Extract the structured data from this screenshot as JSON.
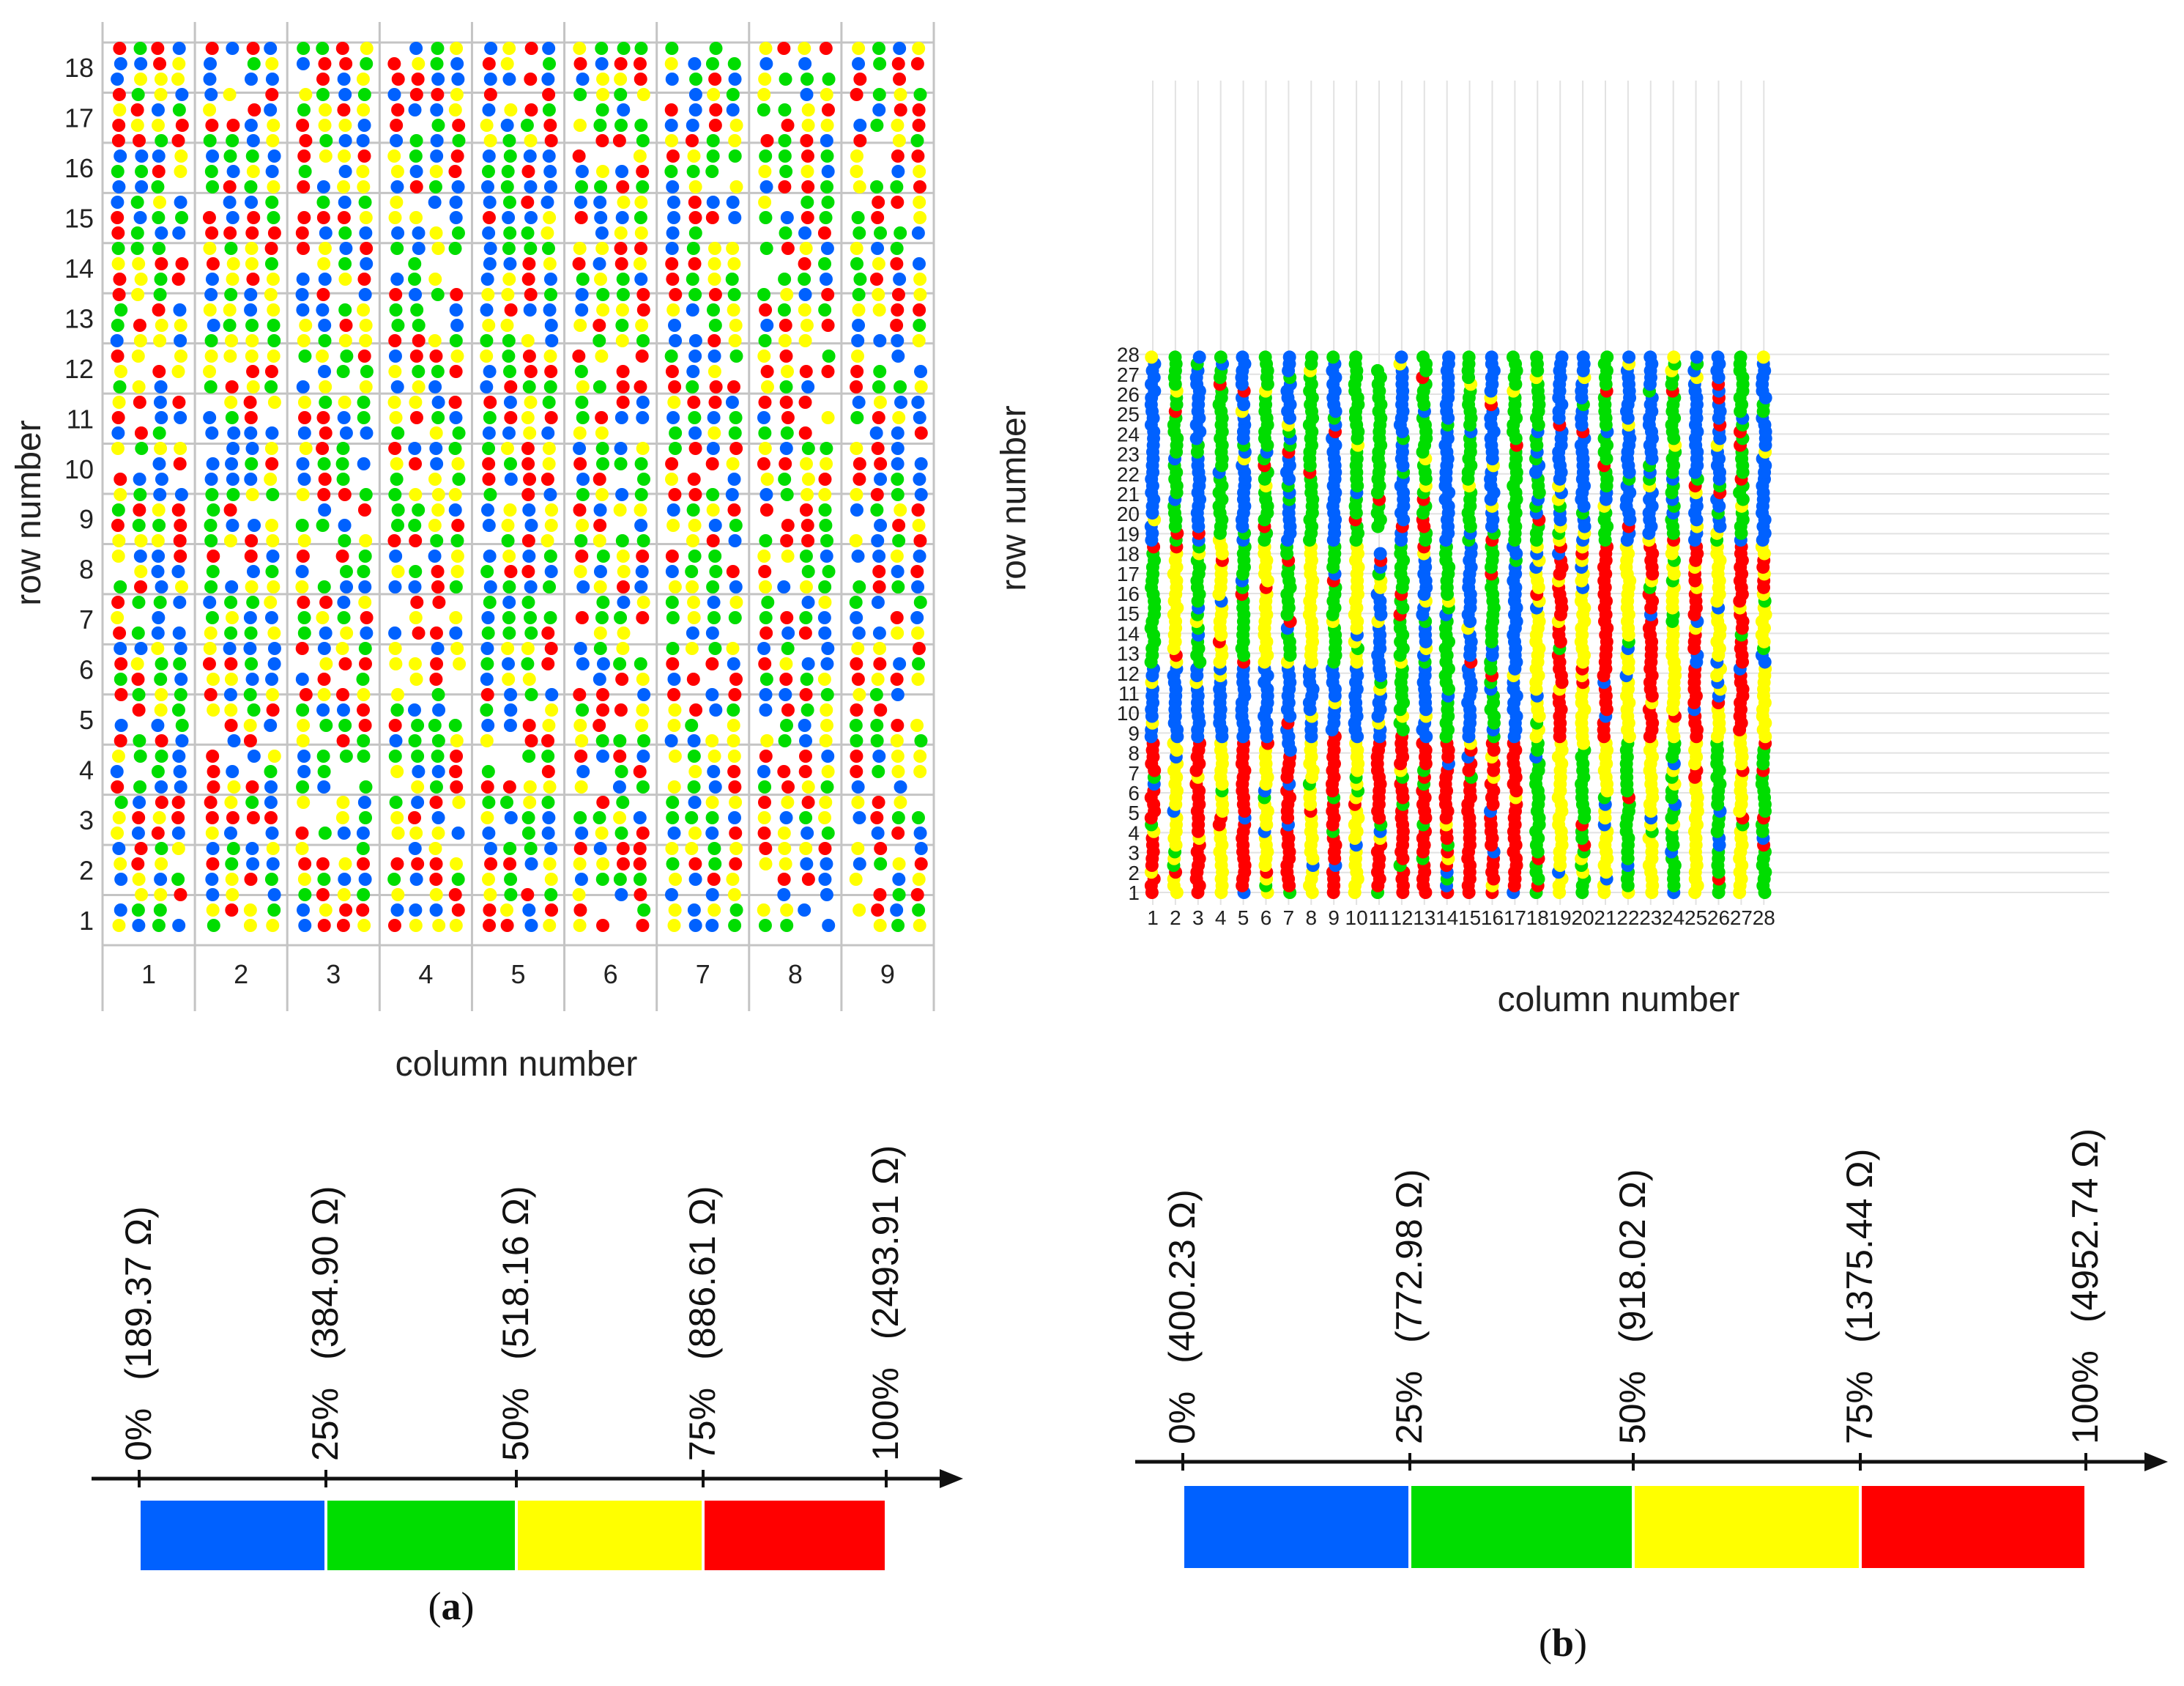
{
  "chart_data": [
    {
      "type": "scatter",
      "panel": "a",
      "xlabel": "column number",
      "ylabel": "row number",
      "columns": [
        1,
        2,
        3,
        4,
        5,
        6,
        7,
        8,
        9
      ],
      "rows": [
        1,
        2,
        3,
        4,
        5,
        6,
        7,
        8,
        9,
        10,
        11,
        12,
        13,
        14,
        15,
        16,
        17,
        18
      ],
      "x_tick_labels": [
        "1",
        "2",
        "3",
        "4",
        "5",
        "6",
        "7",
        "8",
        "9"
      ],
      "y_tick_labels": [
        "1",
        "2",
        "3",
        "4",
        "5",
        "6",
        "7",
        "8",
        "9",
        "10",
        "11",
        "12",
        "13",
        "14",
        "15",
        "16",
        "17",
        "18"
      ],
      "grid": true,
      "point_encoding": "resistance percentile category per measured cell",
      "scale": {
        "ticks": [
          {
            "pct": "0%",
            "ohm": "(189.37 Ω)"
          },
          {
            "pct": "25%",
            "ohm": "(384.90 Ω)"
          },
          {
            "pct": "50%",
            "ohm": "(518.16 Ω)"
          },
          {
            "pct": "75%",
            "ohm": "(886.61 Ω)"
          },
          {
            "pct": "100%",
            "ohm": "(2493.91 Ω)"
          }
        ],
        "bins": [
          {
            "range": "0-25%",
            "color": "#0061ff"
          },
          {
            "range": "25-50%",
            "color": "#00dd00"
          },
          {
            "range": "50-75%",
            "color": "#ffff00"
          },
          {
            "range": "75-100%",
            "color": "#ff0000"
          }
        ]
      },
      "caption": {
        "open": "(",
        "letter": "a",
        "close": ")"
      }
    },
    {
      "type": "scatter",
      "panel": "b",
      "xlabel": "column number",
      "ylabel": "row number",
      "columns": [
        1,
        2,
        3,
        4,
        5,
        6,
        7,
        8,
        9,
        10,
        11,
        12,
        13,
        14,
        15,
        16,
        17,
        18,
        19,
        20,
        21,
        22,
        23,
        24,
        25,
        26,
        27,
        28
      ],
      "rows": [
        1,
        2,
        3,
        4,
        5,
        6,
        7,
        8,
        9,
        10,
        11,
        12,
        13,
        14,
        15,
        16,
        17,
        18,
        19,
        20,
        21,
        22,
        23,
        24,
        25,
        26,
        27,
        28
      ],
      "x_tick_labels": [
        "1",
        "2",
        "3",
        "4",
        "5",
        "6",
        "7",
        "8",
        "9",
        "10",
        "11",
        "12",
        "13",
        "14",
        "15",
        "16",
        "17",
        "18",
        "19",
        "20",
        "21",
        "22",
        "23",
        "24",
        "25",
        "26",
        "27",
        "28"
      ],
      "y_tick_labels": [
        "1",
        "2",
        "3",
        "4",
        "5",
        "6",
        "7",
        "8",
        "9",
        "10",
        "11",
        "12",
        "13",
        "14",
        "15",
        "16",
        "17",
        "18",
        "19",
        "20",
        "21",
        "22",
        "23",
        "24",
        "25",
        "26",
        "27",
        "28"
      ],
      "grid": true,
      "point_encoding": "resistance percentile category per measured cell",
      "scale": {
        "ticks": [
          {
            "pct": "0%",
            "ohm": "(400.23 Ω)"
          },
          {
            "pct": "25%",
            "ohm": "(772.98 Ω)"
          },
          {
            "pct": "50%",
            "ohm": "(918.02 Ω)"
          },
          {
            "pct": "75%",
            "ohm": "(1375.44 Ω)"
          },
          {
            "pct": "100%",
            "ohm": "(4952.74 Ω)"
          }
        ],
        "bins": [
          {
            "range": "0-25%",
            "color": "#0061ff"
          },
          {
            "range": "25-50%",
            "color": "#00dd00"
          },
          {
            "range": "50-75%",
            "color": "#ffff00"
          },
          {
            "range": "75-100%",
            "color": "#ff0000"
          }
        ]
      },
      "caption": {
        "open": "(",
        "letter": "b",
        "close": ")"
      }
    }
  ],
  "colors": {
    "blue": "#0061ff",
    "green": "#00dd00",
    "yellow": "#ffff00",
    "red": "#ff0000",
    "grid": "#c4c4c4",
    "axis": "#111111"
  }
}
